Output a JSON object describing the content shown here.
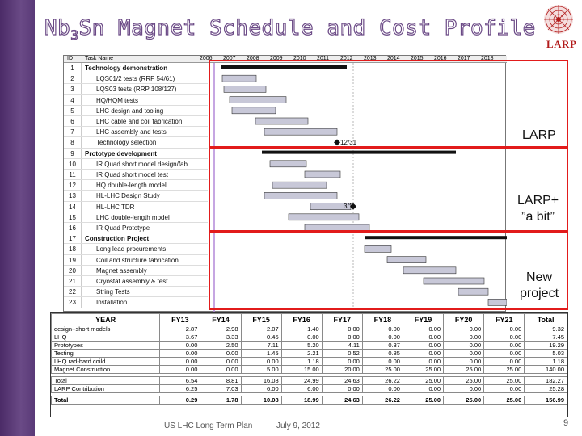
{
  "title_main": "Nb",
  "title_sub": "3",
  "title_rest": "Sn Magnet Schedule and Cost Profile",
  "logo_text": "LARP",
  "gantt": {
    "header_id": "ID",
    "header_name": "Task Name",
    "years": [
      "2006",
      "2007",
      "2008",
      "2009",
      "2010",
      "2011",
      "2012",
      "2013",
      "2014",
      "2015",
      "2016",
      "2017",
      "2018"
    ],
    "rows": [
      {
        "id": "1",
        "name": "Technology demonstration",
        "bold": true
      },
      {
        "id": "2",
        "name": "LQS01/2 tests (RRP 54/61)",
        "bold": false
      },
      {
        "id": "3",
        "name": "LQS03 tests (RRP 108/127)",
        "bold": false
      },
      {
        "id": "4",
        "name": "HQ/HQM tests",
        "bold": false
      },
      {
        "id": "5",
        "name": "LHC design and tooling",
        "bold": false
      },
      {
        "id": "6",
        "name": "LHC cable and coil fabrication",
        "bold": false
      },
      {
        "id": "7",
        "name": "LHC assembly and tests",
        "bold": false
      },
      {
        "id": "8",
        "name": "Technology selection",
        "bold": false
      },
      {
        "id": "9",
        "name": "Prototype development",
        "bold": true
      },
      {
        "id": "10",
        "name": "IR Quad short model design/fab",
        "bold": false
      },
      {
        "id": "11",
        "name": "IR Quad short model test",
        "bold": false
      },
      {
        "id": "12",
        "name": "HQ double-length model",
        "bold": false
      },
      {
        "id": "13",
        "name": "HL-LHC Design Study",
        "bold": false
      },
      {
        "id": "14",
        "name": "HL-LHC TDR",
        "bold": false
      },
      {
        "id": "15",
        "name": "LHC double-length model",
        "bold": false
      },
      {
        "id": "16",
        "name": "IR Quad Prototype",
        "bold": false
      },
      {
        "id": "17",
        "name": "Construction Project",
        "bold": true
      },
      {
        "id": "18",
        "name": "Long lead procurements",
        "bold": false
      },
      {
        "id": "19",
        "name": "Coil and structure fabrication",
        "bold": false
      },
      {
        "id": "20",
        "name": "Magnet assembly",
        "bold": false
      },
      {
        "id": "21",
        "name": "Cryostat assembly & test",
        "bold": false
      },
      {
        "id": "22",
        "name": "String Tests",
        "bold": false
      },
      {
        "id": "23",
        "name": "Installation",
        "bold": false
      }
    ],
    "milestone_1": "12/31",
    "milestone_2": "3/1"
  },
  "labels": {
    "larp": "LARP",
    "larp_plus_1": "LARP+",
    "larp_plus_2": "”a bit”",
    "new_1": "New",
    "new_2": "project"
  },
  "cost_table": {
    "headers": [
      "YEAR",
      "FY13",
      "FY14",
      "FY15",
      "FY16",
      "FY17",
      "FY18",
      "FY19",
      "FY20",
      "FY21",
      "Total"
    ],
    "rows": [
      [
        "design+short models",
        "2.87",
        "2.98",
        "2.07",
        "1.40",
        "0.00",
        "0.00",
        "0.00",
        "0.00",
        "0.00",
        "9.32"
      ],
      [
        "LHQ",
        "3.67",
        "3.33",
        "0.45",
        "0.00",
        "0.00",
        "0.00",
        "0.00",
        "0.00",
        "0.00",
        "7.45"
      ],
      [
        "Prototypes",
        "0.00",
        "2.50",
        "7.11",
        "5.20",
        "4.11",
        "0.37",
        "0.00",
        "0.00",
        "0.00",
        "19.29"
      ],
      [
        "Testing",
        "0.00",
        "0.00",
        "1.45",
        "2.21",
        "0.52",
        "0.85",
        "0.00",
        "0.00",
        "0.00",
        "5.03"
      ],
      [
        "LHQ rad-hard coild",
        "0.00",
        "0.00",
        "0.00",
        "1.18",
        "0.00",
        "0.00",
        "0.00",
        "0.00",
        "0.00",
        "1.18"
      ],
      [
        "Magnet Construction",
        "0.00",
        "0.00",
        "5.00",
        "15.00",
        "20.00",
        "25.00",
        "25.00",
        "25.00",
        "25.00",
        "140.00"
      ]
    ],
    "total_rows": [
      [
        "Total",
        "6.54",
        "8.81",
        "16.08",
        "24.99",
        "24.63",
        "26.22",
        "25.00",
        "25.00",
        "25.00",
        "182.27"
      ],
      [
        "LARP Contribution",
        "6.25",
        "7.03",
        "6.00",
        "6.00",
        "0.00",
        "0.00",
        "0.00",
        "0.00",
        "0.00",
        "25.28"
      ]
    ],
    "final_row": [
      "Total",
      "0.29",
      "1.78",
      "10.08",
      "18.99",
      "24.63",
      "26.22",
      "25.00",
      "25.00",
      "25.00",
      "156.99"
    ]
  },
  "footer": {
    "left": "US LHC Long Term Plan",
    "date": "July 9, 2012",
    "page": "9"
  }
}
